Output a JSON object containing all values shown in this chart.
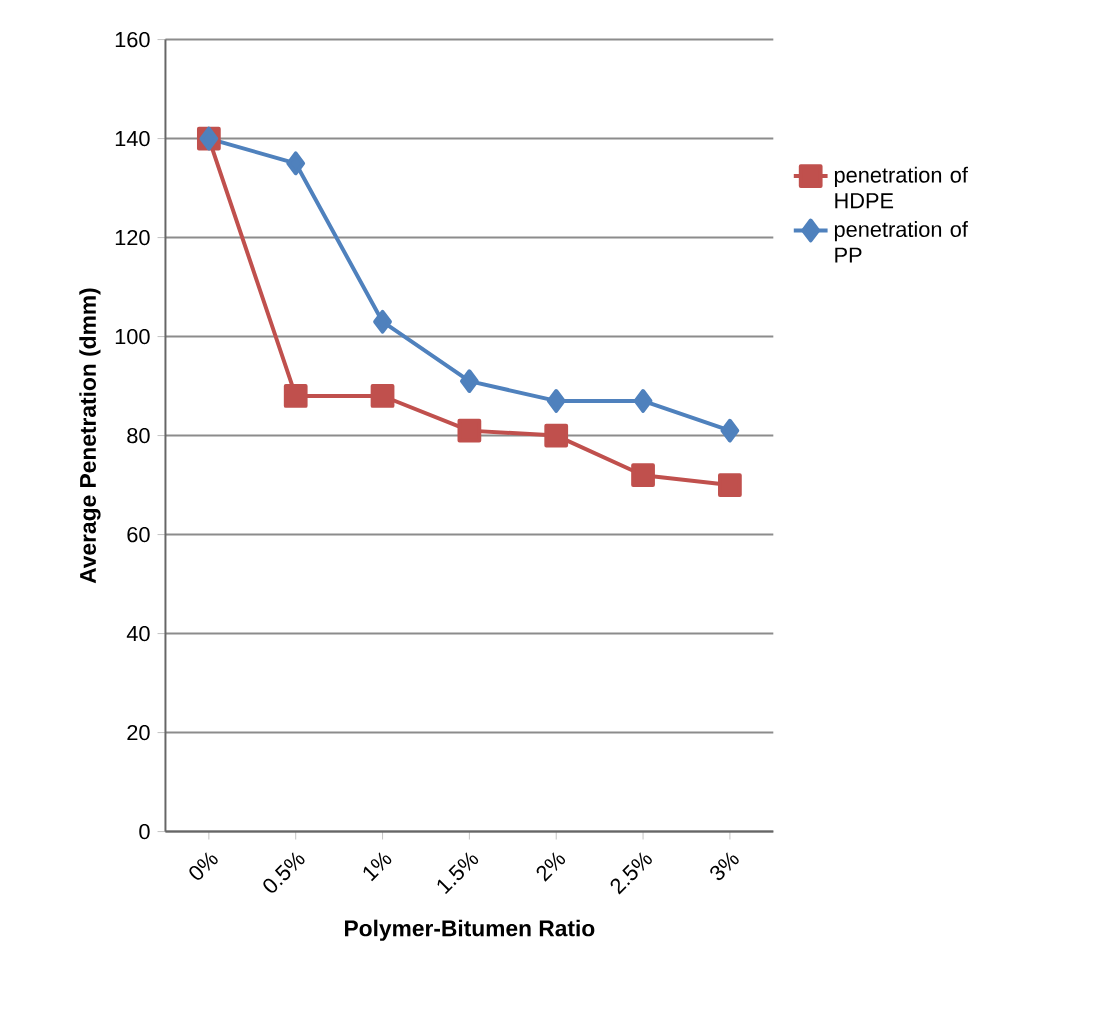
{
  "chart_data": {
    "type": "line",
    "xlabel": "Polymer-Bitumen Ratio",
    "ylabel": "Average Penetration (dmm)",
    "categories": [
      "0%",
      "0.5%",
      "1%",
      "1.5%",
      "2%",
      "2.5%",
      "3%"
    ],
    "series": [
      {
        "name": "penetration of HDPE",
        "color": "#c0504d",
        "marker": "square",
        "values": [
          140,
          88,
          88,
          81,
          80,
          72,
          70
        ]
      },
      {
        "name": "penetration of PP",
        "color": "#4f81bd",
        "marker": "diamond",
        "values": [
          140,
          135,
          103,
          91,
          87,
          87,
          81
        ]
      }
    ],
    "ylim": [
      0,
      160
    ],
    "yticks": [
      0,
      20,
      40,
      60,
      80,
      100,
      120,
      140,
      160
    ],
    "grid": "y",
    "legend": "right"
  }
}
